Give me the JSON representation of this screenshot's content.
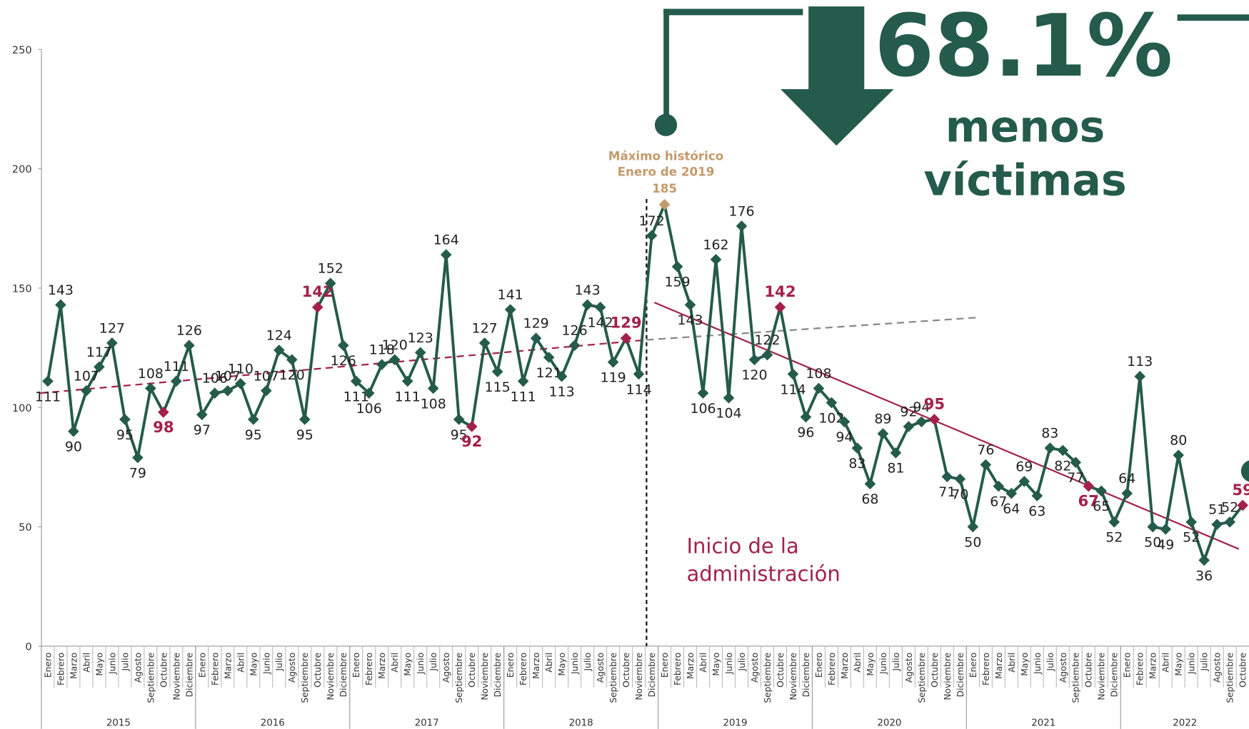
{
  "chart_data": {
    "type": "line",
    "categories": [
      "Enero",
      "Febrero",
      "Marzo",
      "Abril",
      "Mayo",
      "Junio",
      "Julio",
      "Agosto",
      "Septiembre",
      "Octubre",
      "Noviembre",
      "Diciembre",
      "Enero",
      "Febrero",
      "Marzo",
      "Abril",
      "Mayo",
      "Junio",
      "Julio",
      "Agosto",
      "Septiembre",
      "Octubre",
      "Noviembre",
      "Diciembre",
      "Enero",
      "Febrero",
      "Marzo",
      "Abril",
      "Mayo",
      "Junio",
      "Julio",
      "Agosto",
      "Septiembre",
      "Octubre",
      "Noviembre",
      "Diciembre",
      "Enero",
      "Febrero",
      "Marzo",
      "Abril",
      "Mayo",
      "Junio",
      "Julio",
      "Agosto",
      "Septiembre",
      "Octubre",
      "Noviembre",
      "Diciembre",
      "Enero",
      "Febrero",
      "Marzo",
      "Abril",
      "Mayo",
      "Junio",
      "Julio",
      "Agosto",
      "Septiembre",
      "Octubre",
      "Noviembre",
      "Diciembre",
      "Enero",
      "Febrero",
      "Marzo",
      "Abril",
      "Mayo",
      "Junio",
      "Julio",
      "Agosto",
      "Septiembre",
      "Octubre",
      "Noviembre",
      "Diciembre",
      "Enero",
      "Febrero",
      "Marzo",
      "Abril",
      "Mayo",
      "Junio",
      "Julio",
      "Agosto",
      "Septiembre",
      "Octubre",
      "Noviembre",
      "Diciembre",
      "Enero",
      "Febrero",
      "Marzo",
      "Abril",
      "Mayo",
      "Junio",
      "Julio",
      "Agosto",
      "Septiembre",
      "Octubre"
    ],
    "year_groups": [
      {
        "label": "2015",
        "count": 12
      },
      {
        "label": "2016",
        "count": 12
      },
      {
        "label": "2017",
        "count": 12
      },
      {
        "label": "2018",
        "count": 12
      },
      {
        "label": "2019",
        "count": 12
      },
      {
        "label": "2020",
        "count": 12
      },
      {
        "label": "2021",
        "count": 12
      },
      {
        "label": "2022",
        "count": 10
      }
    ],
    "series": [
      {
        "color": "#245b4a",
        "values": [
          111,
          143,
          90,
          107,
          117,
          127,
          95,
          79,
          108,
          98,
          111,
          126,
          97,
          106,
          107,
          110,
          95,
          107,
          124,
          120,
          95,
          142,
          152,
          126,
          111,
          106,
          118,
          120,
          111,
          123,
          108,
          164,
          95,
          92,
          127,
          115,
          141,
          111,
          129,
          121,
          113,
          126,
          143,
          142,
          119,
          129,
          114,
          172,
          185,
          159,
          143,
          106,
          162,
          104,
          176,
          120,
          122,
          142,
          114,
          96,
          108,
          102,
          94,
          83,
          68,
          89,
          81,
          92,
          94,
          95,
          71,
          70,
          50,
          76,
          67,
          64,
          69,
          63,
          83,
          82,
          77,
          67,
          65,
          52,
          64,
          113,
          50,
          49,
          80,
          52,
          36,
          51,
          52,
          59
        ]
      }
    ],
    "highlight_indices": [
      9,
      21,
      33,
      45,
      57,
      69,
      81,
      93
    ],
    "highlight_color": "#a3214b",
    "max_index": 48,
    "max_color": "#c49a6c",
    "ylim": [
      0,
      250
    ],
    "yticks": [
      0,
      50,
      100,
      150,
      200,
      250
    ],
    "trendlines": [
      {
        "color": "#a3214b",
        "dashed": true,
        "x": [
          -0.6,
          46.6
        ],
        "values": [
          106,
          128.3
        ]
      },
      {
        "color": "#888888",
        "dashed": true,
        "x": [
          46.6,
          72.4
        ],
        "values": [
          128.3,
          137.7
        ]
      },
      {
        "color": "#a3214b",
        "dashed": false,
        "x": [
          47.2,
          92.7
        ],
        "values": [
          144,
          40.7
        ]
      }
    ],
    "admin_start_x": 46.6,
    "annotations": {
      "max_title": "Máximo histórico",
      "max_subtitle": "Enero de 2019",
      "admin_label": [
        "Inicio de la",
        "administración"
      ],
      "headline": "68.1%",
      "headline_sub": [
        "menos",
        "víctimas"
      ]
    }
  }
}
